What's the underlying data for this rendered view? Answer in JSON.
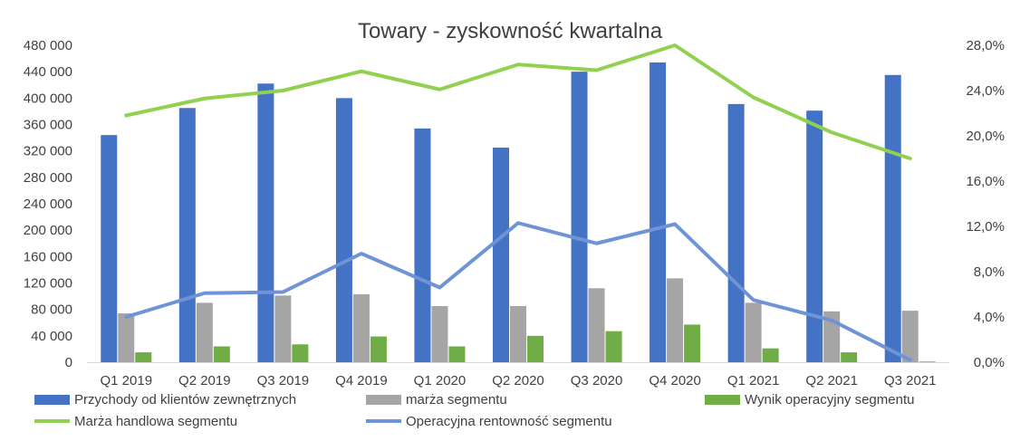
{
  "chart_data": {
    "type": "bar",
    "title": "Towary - zyskowność kwartalna",
    "categories": [
      "Q1 2019",
      "Q2 2019",
      "Q3 2019",
      "Q4 2019",
      "Q1 2020",
      "Q2 2020",
      "Q3 2020",
      "Q4 2020",
      "Q1 2021",
      "Q2 2021",
      "Q3 2021"
    ],
    "y_left": {
      "ylim": [
        0,
        480000
      ],
      "tick_values": [
        0,
        40000,
        80000,
        120000,
        160000,
        200000,
        240000,
        280000,
        320000,
        360000,
        400000,
        440000,
        480000
      ],
      "tick_labels": [
        "0",
        "40 000",
        "80 000",
        "120 000",
        "160 000",
        "200 000",
        "240 000",
        "280 000",
        "320 000",
        "360 000",
        "400 000",
        "440 000",
        "480 000"
      ]
    },
    "y_right": {
      "ylim": [
        0,
        28
      ],
      "tick_values": [
        0,
        4,
        8,
        12,
        16,
        20,
        24,
        28
      ],
      "tick_labels": [
        "0,0%",
        "4,0%",
        "8,0%",
        "12,0%",
        "16,0%",
        "20,0%",
        "24,0%",
        "28,0%"
      ]
    },
    "series": [
      {
        "name": "Przychody od klientów zewnętrznych",
        "type": "bar",
        "axis": "left",
        "color": "#4472C4",
        "values": [
          344000,
          385000,
          422000,
          400000,
          354000,
          325000,
          440000,
          454000,
          391000,
          381000,
          435000
        ]
      },
      {
        "name": "marża segmentu",
        "type": "bar",
        "axis": "left",
        "color": "#A5A5A5",
        "values": [
          74000,
          90000,
          101000,
          103000,
          85000,
          85000,
          112000,
          127000,
          90000,
          77000,
          78000
        ]
      },
      {
        "name": "Wynik operacyjny segmentu",
        "type": "bar",
        "axis": "left",
        "color": "#70AD47",
        "values": [
          15000,
          24000,
          27000,
          39000,
          24000,
          40000,
          47000,
          57000,
          21000,
          15000,
          1000
        ]
      },
      {
        "name": "Marża handlowa segmentu",
        "type": "line",
        "axis": "right",
        "color": "#92D050",
        "values": [
          21.8,
          23.3,
          24.0,
          25.7,
          24.1,
          26.3,
          25.8,
          28.0,
          23.4,
          20.3,
          18.0
        ]
      },
      {
        "name": "Operacyjna rentowność segmentu",
        "type": "line",
        "axis": "right",
        "color": "#6F94D6",
        "values": [
          4.0,
          6.1,
          6.2,
          9.6,
          6.6,
          12.3,
          10.5,
          12.2,
          5.5,
          3.7,
          0.2
        ]
      }
    ],
    "grid": false,
    "legend_position": "bottom"
  }
}
